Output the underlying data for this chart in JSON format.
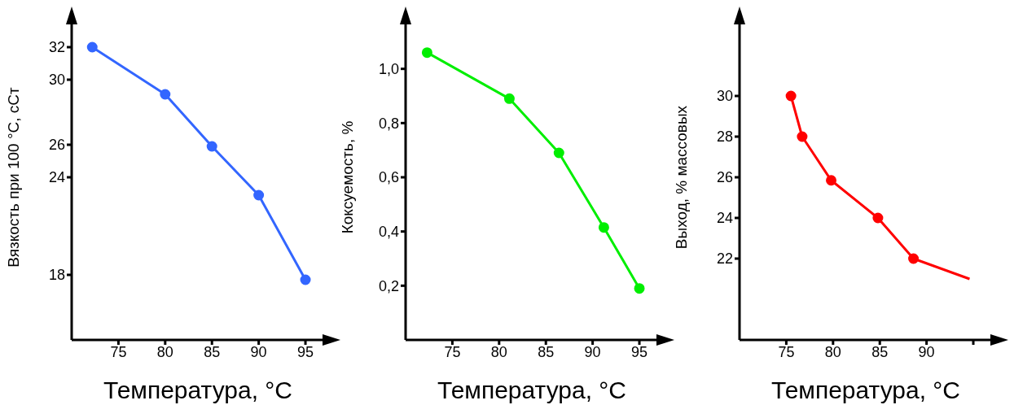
{
  "chart_data": [
    {
      "type": "line",
      "xlabel": "Температура,  °C",
      "ylabel": "Вязкость при 100 °C, сСт",
      "marker": "circle",
      "xlim": [
        70,
        97
      ],
      "xticks": [
        75,
        80,
        85,
        90,
        95
      ],
      "ylim": [
        14,
        34
      ],
      "yticks": [
        18,
        24,
        26,
        30,
        32
      ],
      "series": [
        {
          "color": "#3366ff",
          "x": [
            72.2,
            80,
            85,
            90,
            95
          ],
          "values": [
            32,
            29.1,
            25.9,
            22.9,
            17.7
          ]
        }
      ]
    },
    {
      "type": "line",
      "xlabel": "Температура,  °C",
      "ylabel": "Коксуемость, %",
      "marker": "circle",
      "xlim": [
        70,
        97
      ],
      "xticks": [
        75,
        80,
        85,
        90,
        95
      ],
      "ylim": [
        0,
        1.2
      ],
      "yticks": [
        {
          "value": 0.2,
          "label": "0,2"
        },
        {
          "value": 0.4,
          "label": "0,4"
        },
        {
          "value": 0.6,
          "label": "0,6"
        },
        {
          "value": 0.8,
          "label": "0,8"
        },
        {
          "value": 1.0,
          "label": "1,0"
        }
      ],
      "series": [
        {
          "color": "#00ee00",
          "x": [
            72.3,
            81.1,
            86.4,
            91.2,
            95
          ],
          "values": [
            1.06,
            0.89,
            0.69,
            0.415,
            0.19
          ]
        }
      ]
    },
    {
      "type": "line",
      "xlabel": "Температура,  °C",
      "ylabel": "Выход, % массовых",
      "marker": "circle",
      "xlim": [
        70,
        97
      ],
      "xticks": [
        75,
        80,
        85,
        90,
        {
          "value": 95,
          "label": null
        }
      ],
      "ylim": [
        18,
        34
      ],
      "yticks": [
        22,
        24,
        26,
        28,
        30
      ],
      "series": [
        {
          "color": "#ff0000",
          "x": [
            75.5,
            76.7,
            79.8,
            84.8,
            88.6
          ],
          "values": [
            30,
            28,
            25.85,
            24,
            22
          ]
        },
        {
          "color": "#ff0000",
          "marker": "none",
          "x": [
            88.6,
            94.6
          ],
          "values": [
            22,
            21
          ]
        }
      ]
    }
  ]
}
